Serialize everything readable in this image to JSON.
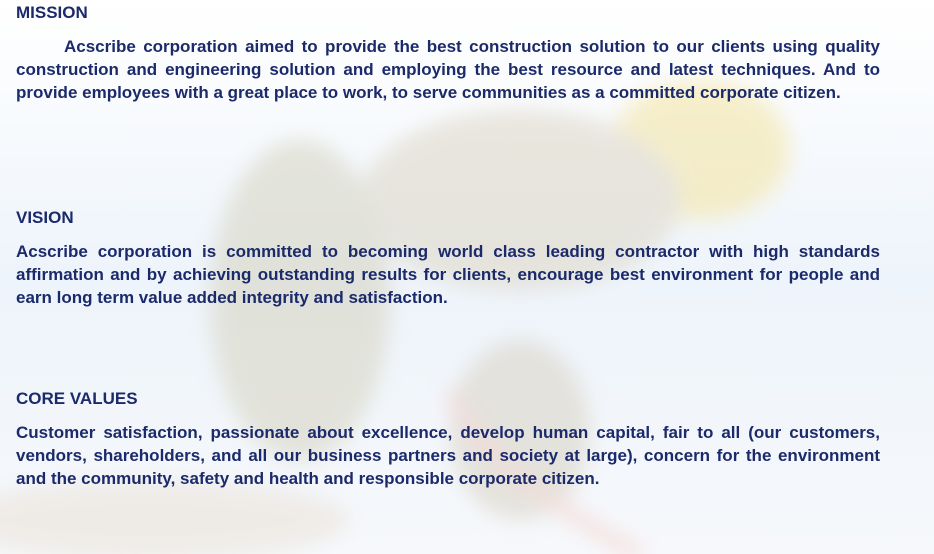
{
  "sections": [
    {
      "heading": "MISSION",
      "text": "Acscribe corporation aimed to provide the best construction solution to our clients using quality construction and engineering solution and employing the best resource and latest techniques. And to provide employees with a great place to work, to serve communities as a committed corporate citizen."
    },
    {
      "heading": "VISION",
      "text": "Acscribe corporation is committed to becoming world class leading contractor with high standards affirmation and by achieving outstanding results for clients, encourage best environment for people and earn long term value added integrity and satisfaction."
    },
    {
      "heading": "CORE VALUES",
      "text": "Customer satisfaction, passionate about excellence, develop human capital, fair to all (our customers, vendors, shareholders, and all our business partners and society at large), concern for the environment and the community, safety and health and responsible corporate citizen."
    }
  ]
}
